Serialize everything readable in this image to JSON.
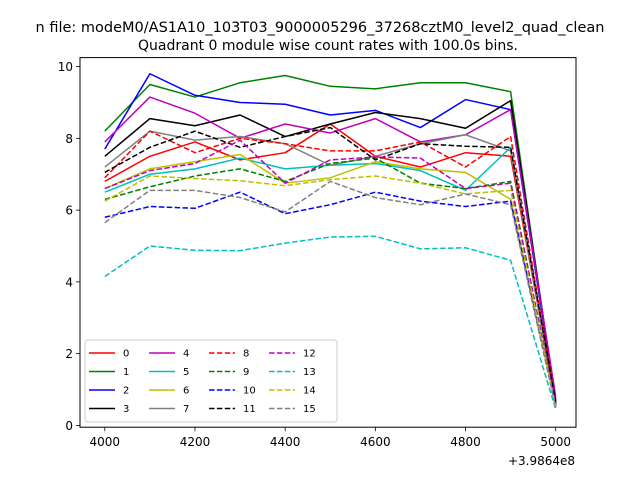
{
  "chart_data": {
    "type": "line",
    "suptitle": "n file: modeM0/AS1A10_103T03_9000005296_37268cztM0_level2_quad_clean",
    "title": "Quadrant 0 module wise count rates with 100.0s bins.",
    "xlabel": "",
    "ylabel": "",
    "x_offset_label": "+3.9864e8",
    "x": [
      4000,
      4100,
      4200,
      4300,
      4400,
      4500,
      4600,
      4700,
      4800,
      4900,
      5000
    ],
    "xlim": [
      3945,
      5045
    ],
    "ylim": [
      -0.05,
      10.25
    ],
    "xticks": [
      4000,
      4200,
      4400,
      4600,
      4800,
      5000
    ],
    "yticks": [
      0,
      2,
      4,
      6,
      8,
      10
    ],
    "grid": false,
    "legend_position": "lower-left",
    "legend_columns": 4,
    "series": [
      {
        "name": "0",
        "color": "#ff0000",
        "style": "solid",
        "values": [
          6.8,
          7.5,
          7.9,
          7.4,
          7.6,
          8.4,
          7.5,
          7.2,
          7.6,
          7.5,
          0.6
        ]
      },
      {
        "name": "1",
        "color": "#008000",
        "style": "solid",
        "values": [
          8.2,
          9.5,
          9.15,
          9.55,
          9.75,
          9.45,
          9.38,
          9.55,
          9.55,
          9.3,
          0.6
        ]
      },
      {
        "name": "2",
        "color": "#0000ff",
        "style": "solid",
        "values": [
          7.7,
          9.8,
          9.2,
          9.0,
          8.95,
          8.65,
          8.78,
          8.3,
          9.08,
          8.8,
          0.65
        ]
      },
      {
        "name": "3",
        "color": "#000000",
        "style": "solid",
        "values": [
          7.5,
          8.55,
          8.35,
          8.65,
          8.05,
          8.4,
          8.72,
          8.55,
          8.28,
          9.05,
          0.7
        ]
      },
      {
        "name": "4",
        "color": "#bf00bf",
        "style": "solid",
        "values": [
          7.9,
          9.15,
          8.7,
          8.0,
          8.4,
          8.15,
          8.55,
          7.9,
          8.1,
          8.8,
          0.8
        ]
      },
      {
        "name": "5",
        "color": "#00bfbf",
        "style": "solid",
        "values": [
          6.5,
          7.0,
          7.15,
          7.45,
          7.15,
          7.25,
          7.3,
          7.1,
          6.55,
          7.75,
          0.5
        ]
      },
      {
        "name": "6",
        "color": "#bfbf00",
        "style": "solid",
        "values": [
          6.6,
          7.15,
          7.35,
          7.55,
          6.75,
          6.9,
          7.35,
          7.15,
          7.05,
          6.3,
          0.55
        ]
      },
      {
        "name": "7",
        "color": "#808080",
        "style": "solid",
        "values": [
          7.2,
          8.2,
          7.95,
          8.05,
          7.85,
          7.25,
          7.5,
          7.85,
          8.1,
          7.65,
          0.55
        ]
      },
      {
        "name": "8",
        "color": "#ff0000",
        "style": "dashed",
        "values": [
          6.9,
          8.2,
          7.6,
          8.0,
          7.85,
          7.65,
          7.65,
          7.9,
          7.2,
          8.05,
          0.6
        ]
      },
      {
        "name": "9",
        "color": "#008000",
        "style": "dashed",
        "values": [
          6.3,
          6.65,
          6.95,
          7.15,
          6.8,
          7.3,
          7.45,
          6.75,
          6.6,
          6.8,
          0.55
        ]
      },
      {
        "name": "10",
        "color": "#0000ff",
        "style": "dashed",
        "values": [
          5.8,
          6.1,
          6.05,
          6.5,
          5.9,
          6.15,
          6.5,
          6.25,
          6.1,
          6.25,
          0.6
        ]
      },
      {
        "name": "11",
        "color": "#000000",
        "style": "dashed",
        "values": [
          7.05,
          7.75,
          8.2,
          7.75,
          8.05,
          8.3,
          7.4,
          7.85,
          7.78,
          7.75,
          0.65
        ]
      },
      {
        "name": "12",
        "color": "#bf00bf",
        "style": "dashed",
        "values": [
          6.6,
          7.1,
          7.3,
          7.95,
          6.75,
          7.4,
          7.48,
          7.45,
          6.6,
          6.75,
          0.55
        ]
      },
      {
        "name": "13",
        "color": "#00bfbf",
        "style": "dashed",
        "values": [
          4.15,
          5.0,
          4.88,
          4.87,
          5.08,
          5.25,
          5.27,
          4.92,
          4.95,
          4.6,
          0.45
        ]
      },
      {
        "name": "14",
        "color": "#bfbf00",
        "style": "dashed",
        "values": [
          6.25,
          6.95,
          6.88,
          6.82,
          6.68,
          6.85,
          6.95,
          6.75,
          6.45,
          6.55,
          0.5
        ]
      },
      {
        "name": "15",
        "color": "#808080",
        "style": "dashed",
        "values": [
          5.65,
          6.55,
          6.55,
          6.35,
          5.95,
          6.8,
          6.35,
          6.15,
          6.45,
          6.15,
          0.5
        ]
      }
    ]
  }
}
